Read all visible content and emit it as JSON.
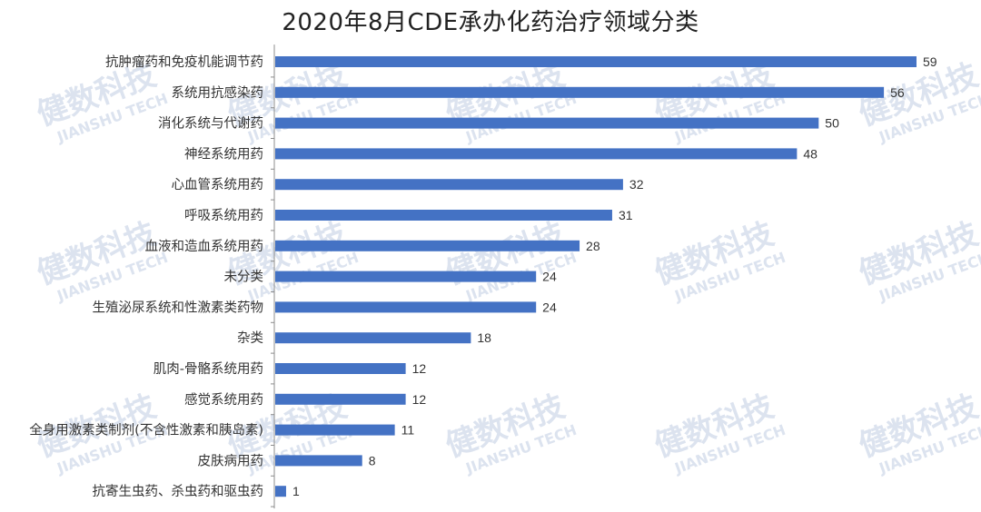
{
  "chart_data": {
    "type": "bar",
    "orientation": "horizontal",
    "title": "2020年8月CDE承办化药治疗领域分类",
    "xlabel": "",
    "ylabel": "",
    "xlim": [
      0,
      59
    ],
    "grid": false,
    "legend": "none",
    "bar_color": "#4472C4",
    "categories": [
      "抗肿瘤药和免疫机能调节药",
      "系统用抗感染药",
      "消化系统与代谢药",
      "神经系统用药",
      "心血管系统用药",
      "呼吸系统用药",
      "血液和造血系统用药",
      "未分类",
      "生殖泌尿系统和性激素类药物",
      "杂类",
      "肌肉-骨骼系统用药",
      "感觉系统用药",
      "全身用激素类制剂(不含性激素和胰岛素)",
      "皮肤病用药",
      "抗寄生虫药、杀虫药和驱虫药"
    ],
    "values": [
      59,
      56,
      50,
      48,
      32,
      31,
      28,
      24,
      24,
      18,
      12,
      12,
      11,
      8,
      1
    ]
  },
  "watermark": {
    "line1": "健数科技",
    "line2": "JIANSHU TECH",
    "color": "#dce3ef"
  }
}
